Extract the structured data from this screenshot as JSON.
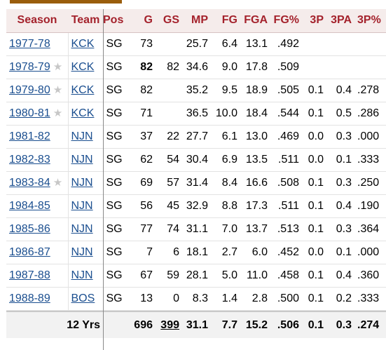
{
  "columns": [
    "Season",
    "Team",
    "Pos",
    "G",
    "GS",
    "MP",
    "FG",
    "FGA",
    "FG%",
    "3P",
    "3PA",
    "3P%",
    ""
  ],
  "rows": [
    {
      "season": "1977-78",
      "star": false,
      "team": "KCK",
      "pos": "SG",
      "g": "73",
      "gs": "",
      "mp": "25.7",
      "fg": "6.4",
      "fga": "13.1",
      "fgp": ".492",
      "tp": "",
      "tpa": "",
      "tpp": "",
      "extra": "6"
    },
    {
      "season": "1978-79",
      "star": true,
      "team": "KCK",
      "pos": "SG",
      "g": "82",
      "gs": "82",
      "mp": "34.6",
      "fg": "9.0",
      "fga": "17.8",
      "fgp": ".509",
      "tp": "",
      "tpa": "",
      "tpp": "",
      "extra": "9"
    },
    {
      "season": "1979-80",
      "star": true,
      "team": "KCK",
      "pos": "SG",
      "g": "82",
      "gs": "",
      "mp": "35.2",
      "fg": "9.5",
      "fga": "18.9",
      "fgp": ".505",
      "tp": "0.1",
      "tpa": "0.4",
      "tpp": ".278",
      "extra": "9"
    },
    {
      "season": "1980-81",
      "star": true,
      "team": "KCK",
      "pos": "SG",
      "g": "71",
      "gs": "",
      "mp": "36.5",
      "fg": "10.0",
      "fga": "18.4",
      "fgp": ".544",
      "tp": "0.1",
      "tpa": "0.5",
      "tpp": ".286",
      "extra": "9"
    },
    {
      "season": "1981-82",
      "star": false,
      "team": "NJN",
      "pos": "SG",
      "g": "37",
      "gs": "22",
      "mp": "27.7",
      "fg": "6.1",
      "fga": "13.0",
      "fgp": ".469",
      "tp": "0.0",
      "tpa": "0.3",
      "tpp": ".000",
      "extra": "6"
    },
    {
      "season": "1982-83",
      "star": false,
      "team": "NJN",
      "pos": "SG",
      "g": "62",
      "gs": "54",
      "mp": "30.4",
      "fg": "6.9",
      "fga": "13.5",
      "fgp": ".511",
      "tp": "0.0",
      "tpa": "0.1",
      "tpp": ".333",
      "extra": "6"
    },
    {
      "season": "1983-84",
      "star": true,
      "team": "NJN",
      "pos": "SG",
      "g": "69",
      "gs": "57",
      "mp": "31.4",
      "fg": "8.4",
      "fga": "16.6",
      "fgp": ".508",
      "tp": "0.1",
      "tpa": "0.3",
      "tpp": ".250",
      "extra": "8"
    },
    {
      "season": "1984-85",
      "star": false,
      "team": "NJN",
      "pos": "SG",
      "g": "56",
      "gs": "45",
      "mp": "32.9",
      "fg": "8.8",
      "fga": "17.3",
      "fgp": ".511",
      "tp": "0.1",
      "tpa": "0.4",
      "tpp": ".190",
      "extra": "8"
    },
    {
      "season": "1985-86",
      "star": false,
      "team": "NJN",
      "pos": "SG",
      "g": "77",
      "gs": "74",
      "mp": "31.1",
      "fg": "7.0",
      "fga": "13.7",
      "fgp": ".513",
      "tp": "0.1",
      "tpa": "0.3",
      "tpp": ".364",
      "extra": "6"
    },
    {
      "season": "1986-87",
      "star": false,
      "team": "NJN",
      "pos": "SG",
      "g": "7",
      "gs": "6",
      "mp": "18.1",
      "fg": "2.7",
      "fga": "6.0",
      "fgp": ".452",
      "tp": "0.0",
      "tpa": "0.1",
      "tpp": ".000",
      "extra": "2"
    },
    {
      "season": "1987-88",
      "star": false,
      "team": "NJN",
      "pos": "SG",
      "g": "67",
      "gs": "59",
      "mp": "28.1",
      "fg": "5.0",
      "fga": "11.0",
      "fgp": ".458",
      "tp": "0.1",
      "tpa": "0.4",
      "tpp": ".360",
      "extra": "5"
    },
    {
      "season": "1988-89",
      "star": false,
      "team": "BOS",
      "pos": "SG",
      "g": "13",
      "gs": "0",
      "mp": "8.3",
      "fg": "1.4",
      "fga": "2.8",
      "fgp": ".500",
      "tp": "0.1",
      "tpa": "0.2",
      "tpp": ".333",
      "extra": "1"
    }
  ],
  "totals": {
    "label": "12 Yrs",
    "pos": "",
    "g": "696",
    "gs": "399",
    "mp": "31.1",
    "fg": "7.7",
    "fga": "15.2",
    "fgp": ".506",
    "tp": "0.1",
    "tpa": "0.3",
    "tpp": ".274",
    "extra": "7"
  },
  "colors": {
    "header_bg": "#f5eceb",
    "header_text": "#a4222c",
    "link": "#1a4e8f",
    "accent_bar": "#9a5d0c"
  }
}
